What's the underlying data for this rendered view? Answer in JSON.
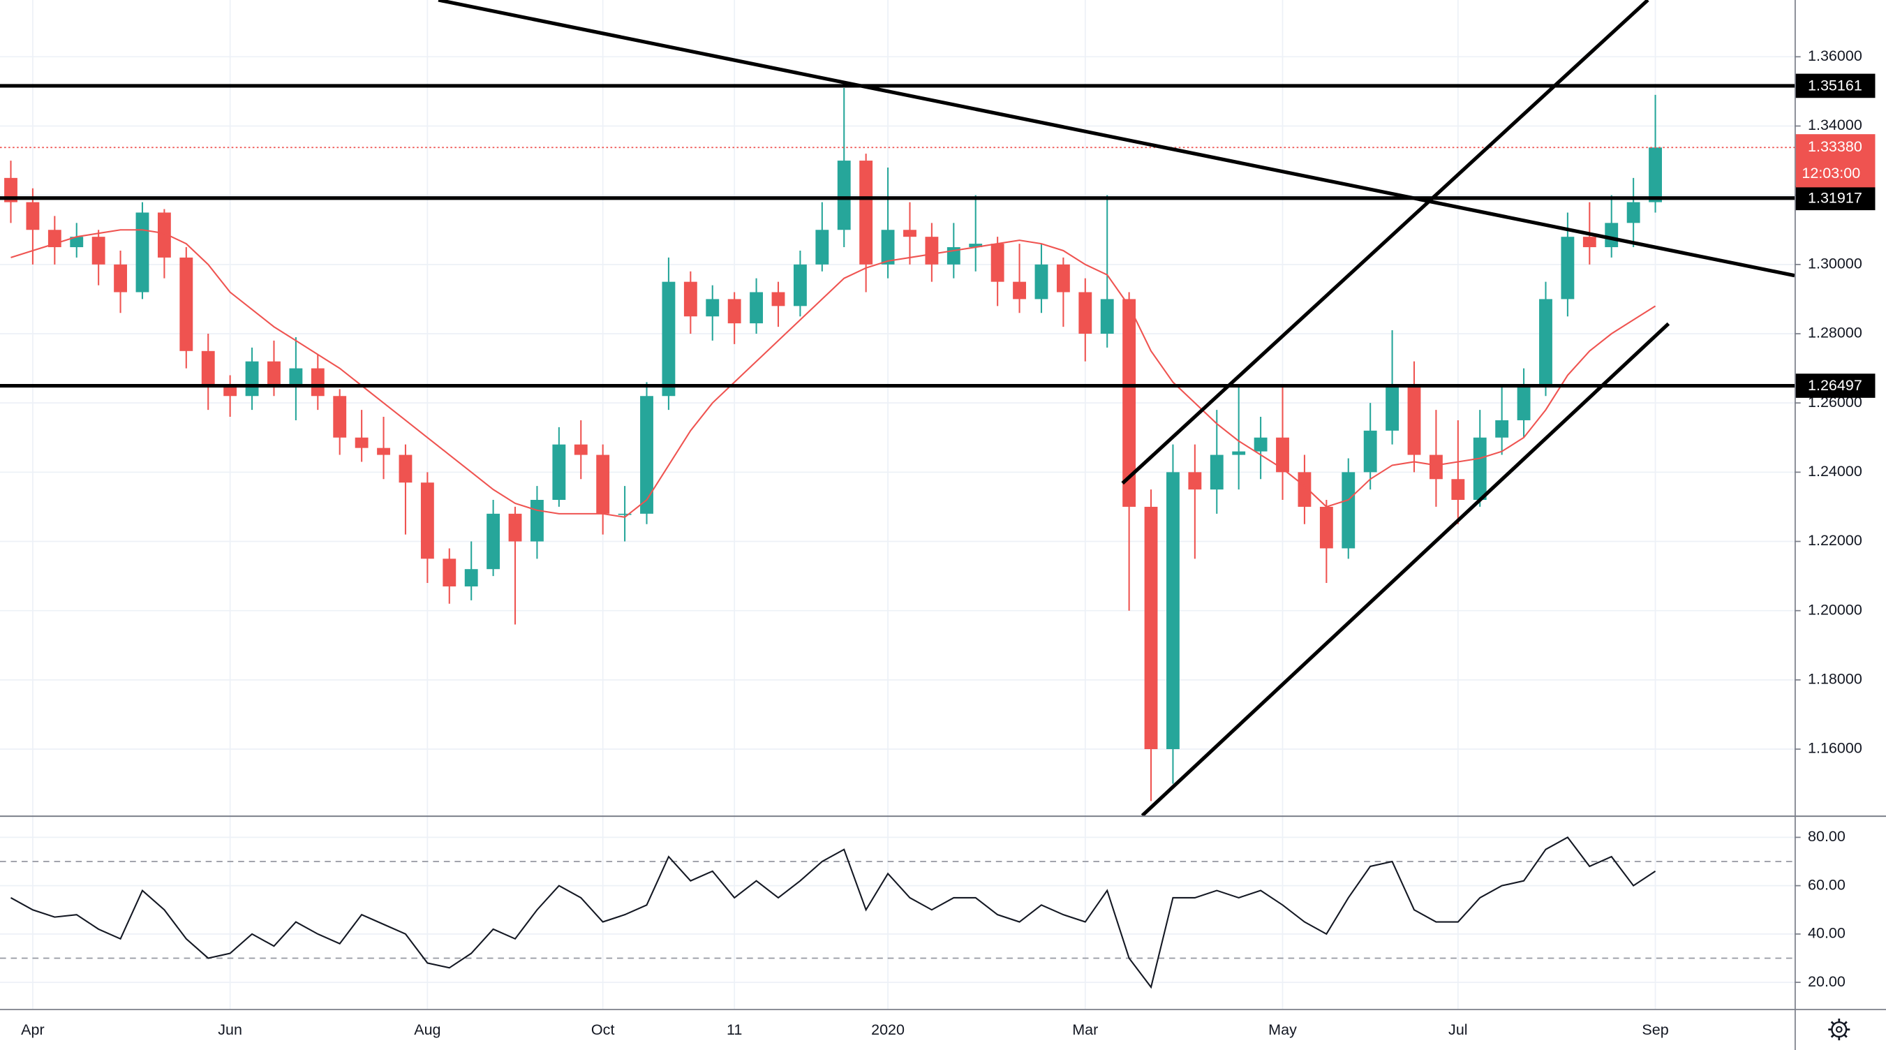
{
  "chart_data": {
    "type": "candlestick",
    "categories": [
      null,
      "Apr",
      null,
      null,
      null,
      null,
      null,
      null,
      null,
      null,
      "Jun",
      null,
      null,
      null,
      null,
      null,
      null,
      null,
      null,
      "Aug",
      null,
      null,
      null,
      null,
      null,
      null,
      null,
      "Oct",
      null,
      null,
      null,
      null,
      null,
      "11",
      null,
      null,
      null,
      null,
      null,
      null,
      "2020",
      null,
      null,
      null,
      null,
      null,
      null,
      null,
      null,
      "Mar",
      null,
      null,
      null,
      null,
      null,
      null,
      null,
      null,
      "May",
      null,
      null,
      null,
      null,
      null,
      null,
      null,
      "Jul",
      null,
      null,
      null,
      null,
      null,
      null,
      null,
      null,
      "Sep"
    ],
    "open": [
      1.325,
      1.318,
      1.31,
      1.305,
      1.308,
      1.3,
      1.292,
      1.315,
      1.302,
      1.275,
      1.265,
      1.262,
      1.272,
      1.265,
      1.27,
      1.262,
      1.25,
      1.247,
      1.245,
      1.237,
      1.215,
      1.207,
      1.212,
      1.228,
      1.22,
      1.232,
      1.248,
      1.245,
      1.228,
      1.228,
      1.262,
      1.295,
      1.285,
      1.29,
      1.283,
      1.292,
      1.288,
      1.3,
      1.31,
      1.33,
      1.3,
      1.31,
      1.308,
      1.3,
      1.305,
      1.306,
      1.295,
      1.29,
      1.3,
      1.292,
      1.28,
      1.29,
      1.23,
      1.16,
      1.24,
      1.235,
      1.245,
      1.246,
      1.25,
      1.24,
      1.23,
      1.218,
      1.24,
      1.252,
      1.265,
      1.245,
      1.238,
      1.232,
      1.25,
      1.255,
      1.265,
      1.29,
      1.308,
      1.305,
      1.312,
      1.318
    ],
    "high": [
      1.33,
      1.322,
      1.314,
      1.312,
      1.31,
      1.304,
      1.318,
      1.316,
      1.305,
      1.28,
      1.268,
      1.276,
      1.278,
      1.279,
      1.274,
      1.264,
      1.258,
      1.256,
      1.248,
      1.24,
      1.218,
      1.22,
      1.232,
      1.23,
      1.236,
      1.253,
      1.255,
      1.248,
      1.236,
      1.266,
      1.302,
      1.298,
      1.294,
      1.292,
      1.296,
      1.295,
      1.304,
      1.318,
      1.351,
      1.332,
      1.328,
      1.318,
      1.312,
      1.312,
      1.32,
      1.308,
      1.306,
      1.306,
      1.302,
      1.296,
      1.32,
      1.292,
      1.235,
      1.248,
      1.248,
      1.258,
      1.265,
      1.256,
      1.265,
      1.245,
      1.232,
      1.244,
      1.26,
      1.281,
      1.272,
      1.258,
      1.255,
      1.258,
      1.265,
      1.27,
      1.295,
      1.315,
      1.318,
      1.32,
      1.325,
      1.349
    ],
    "low": [
      1.312,
      1.3,
      1.3,
      1.302,
      1.294,
      1.286,
      1.29,
      1.296,
      1.27,
      1.258,
      1.256,
      1.258,
      1.262,
      1.255,
      1.258,
      1.245,
      1.243,
      1.238,
      1.222,
      1.208,
      1.202,
      1.203,
      1.21,
      1.196,
      1.215,
      1.23,
      1.238,
      1.222,
      1.22,
      1.225,
      1.258,
      1.28,
      1.278,
      1.277,
      1.28,
      1.282,
      1.285,
      1.298,
      1.305,
      1.292,
      1.296,
      1.3,
      1.295,
      1.296,
      1.298,
      1.288,
      1.286,
      1.286,
      1.282,
      1.272,
      1.276,
      1.2,
      1.145,
      1.15,
      1.215,
      1.228,
      1.235,
      1.238,
      1.232,
      1.225,
      1.208,
      1.215,
      1.235,
      1.248,
      1.24,
      1.23,
      1.225,
      1.23,
      1.245,
      1.25,
      1.262,
      1.285,
      1.3,
      1.302,
      1.305,
      1.315
    ],
    "close": [
      1.318,
      1.31,
      1.305,
      1.308,
      1.3,
      1.292,
      1.315,
      1.302,
      1.275,
      1.265,
      1.262,
      1.272,
      1.265,
      1.27,
      1.262,
      1.25,
      1.247,
      1.245,
      1.237,
      1.215,
      1.207,
      1.212,
      1.228,
      1.22,
      1.232,
      1.248,
      1.245,
      1.228,
      1.228,
      1.262,
      1.295,
      1.285,
      1.29,
      1.283,
      1.292,
      1.288,
      1.3,
      1.31,
      1.33,
      1.3,
      1.31,
      1.308,
      1.3,
      1.305,
      1.306,
      1.295,
      1.29,
      1.3,
      1.292,
      1.28,
      1.29,
      1.23,
      1.16,
      1.24,
      1.235,
      1.245,
      1.246,
      1.25,
      1.24,
      1.23,
      1.218,
      1.24,
      1.252,
      1.265,
      1.245,
      1.238,
      1.232,
      1.25,
      1.255,
      1.265,
      1.29,
      1.308,
      1.305,
      1.312,
      1.318,
      1.3338
    ],
    "up_color": "#26a69a",
    "down_color": "#ef5350",
    "ma": {
      "color": "#ef5350",
      "values": [
        1.302,
        1.304,
        1.306,
        1.308,
        1.309,
        1.31,
        1.31,
        1.309,
        1.306,
        1.3,
        1.292,
        1.287,
        1.282,
        1.278,
        1.274,
        1.27,
        1.265,
        1.26,
        1.255,
        1.25,
        1.245,
        1.24,
        1.235,
        1.231,
        1.229,
        1.228,
        1.228,
        1.228,
        1.227,
        1.232,
        1.242,
        1.252,
        1.26,
        1.266,
        1.272,
        1.278,
        1.284,
        1.29,
        1.296,
        1.299,
        1.301,
        1.302,
        1.303,
        1.304,
        1.305,
        1.306,
        1.307,
        1.306,
        1.304,
        1.3,
        1.297,
        1.288,
        1.275,
        1.266,
        1.26,
        1.254,
        1.249,
        1.245,
        1.241,
        1.236,
        1.23,
        1.232,
        1.238,
        1.242,
        1.243,
        1.242,
        1.243,
        1.244,
        1.246,
        1.25,
        1.258,
        1.268,
        1.275,
        1.28,
        1.284,
        1.288
      ]
    },
    "ylim": [
      1.1408,
      1.3764
    ],
    "yticks": [
      {
        "value": 1.16,
        "label": "1.16000"
      },
      {
        "value": 1.18,
        "label": "1.18000"
      },
      {
        "value": 1.2,
        "label": "1.20000"
      },
      {
        "value": 1.22,
        "label": "1.22000"
      },
      {
        "value": 1.24,
        "label": "1.24000"
      },
      {
        "value": 1.26,
        "label": "1.26000"
      },
      {
        "value": 1.28,
        "label": "1.28000"
      },
      {
        "value": 1.3,
        "label": "1.30000"
      },
      {
        "value": 1.32,
        "label": "1.32000"
      },
      {
        "value": 1.34,
        "label": "1.34000"
      },
      {
        "value": 1.36,
        "label": "1.36000"
      }
    ],
    "grid": true,
    "levels": [
      1.35161,
      1.31917,
      1.26497
    ],
    "last_price": {
      "value": 1.3338,
      "label": "1.33380",
      "color": "#ef5350"
    },
    "countdown": "12:03:00",
    "trendlines": [
      {
        "x": [
          19.5,
          81.35
        ],
        "y": [
          1.3764,
          1.2968
        ]
      },
      {
        "x": [
          50.7,
          74.66
        ],
        "y": [
          1.2368,
          1.3764
        ]
      },
      {
        "x": [
          51.6,
          75.6
        ],
        "y": [
          1.1408,
          1.2829
        ]
      }
    ],
    "indicator": {
      "type": "line",
      "color": "#131722",
      "values": [
        55,
        50,
        47,
        48,
        42,
        38,
        58,
        50,
        38,
        30,
        32,
        40,
        35,
        45,
        40,
        36,
        48,
        44,
        40,
        28,
        26,
        32,
        42,
        38,
        50,
        60,
        55,
        45,
        48,
        52,
        72,
        62,
        66,
        55,
        62,
        55,
        62,
        70,
        75,
        50,
        65,
        55,
        50,
        55,
        55,
        48,
        45,
        52,
        48,
        45,
        58,
        30,
        18,
        55,
        55,
        58,
        55,
        58,
        52,
        45,
        40,
        55,
        68,
        70,
        50,
        45,
        45,
        55,
        60,
        62,
        75,
        80,
        68,
        72,
        60,
        66
      ],
      "ylim": [
        9,
        89
      ],
      "yticks": [
        {
          "value": 20,
          "label": "20.00"
        },
        {
          "value": 40,
          "label": "40.00"
        },
        {
          "value": 60,
          "label": "60.00"
        },
        {
          "value": 80,
          "label": "80.00"
        }
      ],
      "levels": [
        30,
        70
      ]
    }
  }
}
